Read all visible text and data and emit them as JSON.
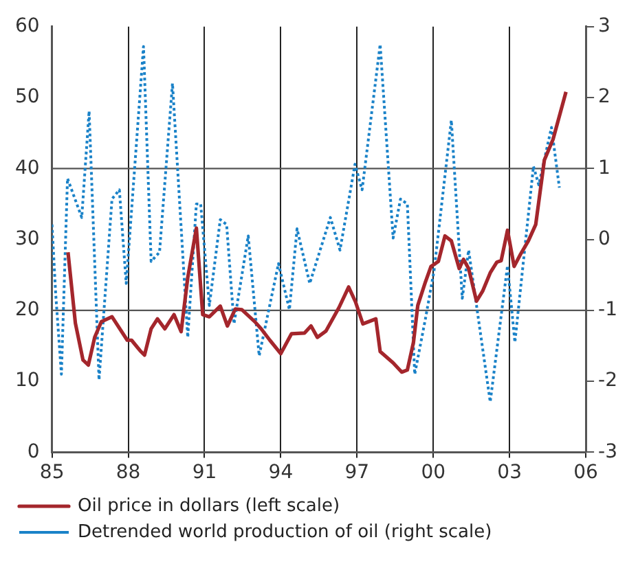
{
  "chart_data": {
    "type": "line",
    "xlim": [
      1985,
      2006
    ],
    "xticks": [
      {
        "value": 1985,
        "label": "85"
      },
      {
        "value": 1988,
        "label": "88"
      },
      {
        "value": 1991,
        "label": "91"
      },
      {
        "value": 1994,
        "label": "94"
      },
      {
        "value": 1997,
        "label": "97"
      },
      {
        "value": 2000,
        "label": "00"
      },
      {
        "value": 2003,
        "label": "03"
      },
      {
        "value": 2006,
        "label": "06"
      }
    ],
    "ylim": [
      0,
      60
    ],
    "yticks": [
      0,
      10,
      20,
      30,
      40,
      50,
      60
    ],
    "y2lim": [
      -3,
      3
    ],
    "y2ticks": [
      -3,
      -2,
      -1,
      0,
      1,
      2,
      3
    ],
    "grid": "x",
    "legend": "bottom",
    "marker": "none",
    "ref_lines": [
      {
        "axis": "y",
        "value": 20
      },
      {
        "axis": "y",
        "value": 40
      }
    ],
    "series": [
      {
        "name": "Oil price in dollars (left scale)",
        "color": "#a4262c",
        "line_style": "solid",
        "x": [
          1985.63,
          1985.92,
          1986.22,
          1986.43,
          1986.68,
          1986.94,
          1987.36,
          1987.96,
          1988.13,
          1988.47,
          1988.64,
          1988.9,
          1989.15,
          1989.44,
          1989.8,
          1990.08,
          1990.34,
          1990.68,
          1990.93,
          1991.19,
          1991.62,
          1991.9,
          1992.21,
          1992.47,
          1992.98,
          1993.23,
          1993.57,
          1994.0,
          1994.42,
          1994.93,
          1995.19,
          1995.44,
          1995.78,
          1996.29,
          1996.67,
          1996.94,
          1997.23,
          1997.74,
          1997.91,
          1998.42,
          1998.76,
          1998.98,
          1999.22,
          1999.39,
          1999.69,
          1999.91,
          2000.2,
          2000.46,
          2000.71,
          2001.02,
          2001.19,
          2001.39,
          2001.7,
          2001.94,
          2002.24,
          2002.5,
          2002.67,
          2002.92,
          2003.18,
          2003.43,
          2003.74,
          2004.03,
          2004.37,
          2004.71,
          2005.22
        ],
        "values": [
          28.2,
          18.2,
          13.0,
          12.3,
          16.2,
          18.4,
          19.1,
          15.8,
          15.8,
          14.3,
          13.7,
          17.4,
          18.8,
          17.4,
          19.4,
          17.0,
          24.6,
          31.6,
          19.4,
          19.1,
          20.6,
          17.8,
          20.2,
          20.1,
          18.4,
          17.4,
          15.8,
          13.9,
          16.7,
          16.8,
          17.8,
          16.2,
          17.1,
          20.4,
          23.3,
          21.2,
          18.1,
          18.8,
          14.2,
          12.6,
          11.3,
          11.6,
          15.5,
          20.7,
          24.0,
          26.2,
          26.9,
          30.5,
          29.8,
          25.9,
          27.2,
          25.9,
          21.3,
          22.7,
          25.3,
          26.8,
          27.0,
          31.3,
          26.2,
          27.9,
          29.8,
          32.1,
          41.2,
          44.1,
          50.8
        ]
      },
      {
        "name": "Detrended world production of oil (right scale)",
        "color": "#1a82c8",
        "line_style": "dotted",
        "axis": "y2",
        "x": [
          1985.0,
          1985.15,
          1985.37,
          1985.61,
          1986.17,
          1986.46,
          1986.85,
          1987.36,
          1987.65,
          1987.92,
          1988.6,
          1988.9,
          1989.23,
          1989.74,
          1990.34,
          1990.68,
          1990.85,
          1991.19,
          1991.62,
          1991.87,
          1992.16,
          1992.72,
          1993.15,
          1993.91,
          1994.34,
          1994.64,
          1995.14,
          1995.95,
          1996.33,
          1996.92,
          1997.2,
          1997.91,
          1998.42,
          1998.71,
          1998.98,
          1999.27,
          1999.69,
          2000.03,
          2000.71,
          2001.14,
          2001.39,
          2002.24,
          2002.92,
          2003.21,
          2003.94,
          2004.15,
          2004.65,
          2004.96
        ],
        "values": [
          0.21,
          -0.79,
          -1.9,
          0.86,
          0.31,
          1.81,
          -1.98,
          0.57,
          0.7,
          -0.62,
          2.72,
          -0.31,
          -0.18,
          2.2,
          -1.38,
          0.5,
          0.5,
          -0.93,
          0.28,
          0.21,
          -1.19,
          0.05,
          -1.64,
          -0.34,
          -0.99,
          0.15,
          -0.62,
          0.31,
          -0.15,
          1.06,
          0.7,
          2.75,
          0.02,
          0.57,
          0.5,
          -1.9,
          -1.12,
          -0.44,
          1.68,
          -0.83,
          -0.15,
          -2.29,
          -0.37,
          -1.45,
          1.03,
          0.77,
          1.58,
          0.73
        ]
      }
    ]
  }
}
